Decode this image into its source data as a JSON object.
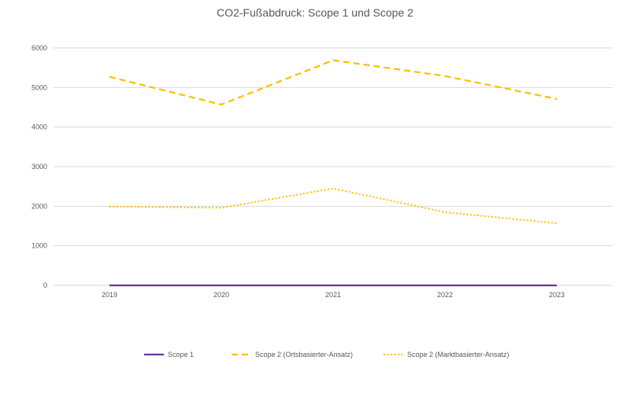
{
  "chart_data": {
    "type": "line",
    "title": "CO2-Fußabdruck: Scope 1 und Scope 2",
    "xlabel": "",
    "ylabel": "",
    "categories": [
      "2019",
      "2020",
      "2021",
      "2022",
      "2023"
    ],
    "ylim": [
      0,
      6000
    ],
    "yticks": [
      0,
      1000,
      2000,
      3000,
      4000,
      5000,
      6000
    ],
    "ytick_labels": [
      "0",
      "1000",
      "2000",
      "3000",
      "4000",
      "5000",
      "6000"
    ],
    "grid": true,
    "legend_position": "bottom",
    "series": [
      {
        "name": "Scope 1",
        "values": [
          0,
          0,
          0,
          0,
          0
        ],
        "color": "#7030a0",
        "line_style": "solid"
      },
      {
        "name": "Scope 2 (Ortsbasierter-Ansatz)",
        "values": [
          5270,
          4570,
          5690,
          5290,
          4710
        ],
        "color": "#ffc000",
        "line_style": "dashed"
      },
      {
        "name": "Scope 2 (Marktbasierter-Ansatz)",
        "values": [
          1990,
          1960,
          2450,
          1850,
          1570
        ],
        "color": "#ffc000",
        "line_style": "dotted"
      }
    ]
  }
}
